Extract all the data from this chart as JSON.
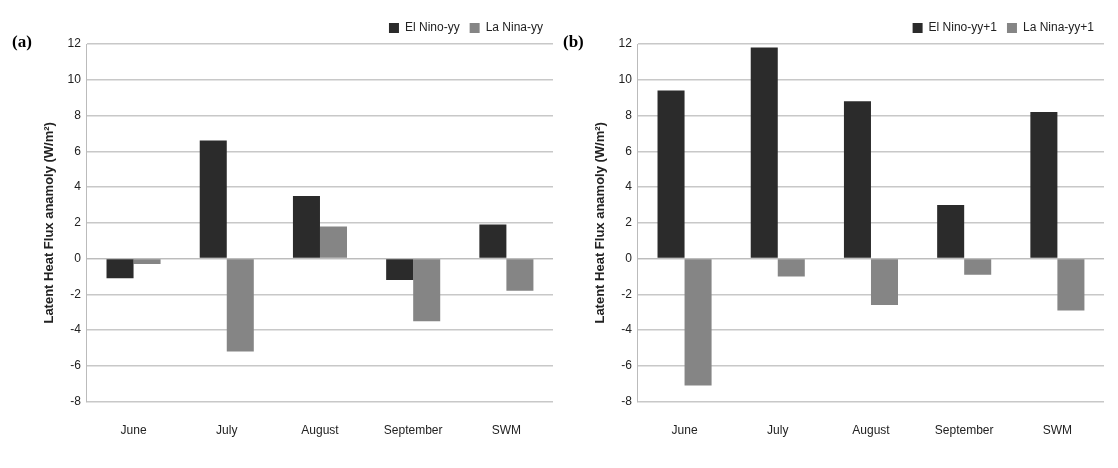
{
  "chart_data": [
    {
      "type": "bar",
      "annotations": [
        "(a)"
      ],
      "ylabel": "Latent Heat Flux anamoly (W/m²)",
      "categories": [
        "June",
        "July",
        "August",
        "September",
        "SWM"
      ],
      "series": [
        {
          "name": "El Nino-yy",
          "color": "#2b2b2b",
          "values": [
            -1.1,
            6.6,
            3.5,
            -1.2,
            1.9
          ]
        },
        {
          "name": "La Nina-yy",
          "color": "#858585",
          "values": [
            -0.3,
            -5.2,
            1.8,
            -3.5,
            -1.8
          ]
        }
      ],
      "ylim": [
        -8,
        12
      ],
      "yticks": [
        -8,
        -6,
        -4,
        -2,
        0,
        2,
        4,
        6,
        8,
        10,
        12
      ],
      "grid": "y",
      "legend": "top right"
    },
    {
      "type": "bar",
      "annotations": [
        "(b)"
      ],
      "ylabel": "Latent Heat Flux anamoly (W/m²)",
      "categories": [
        "June",
        "July",
        "August",
        "September",
        "SWM"
      ],
      "series": [
        {
          "name": "El Nino-yy+1",
          "color": "#2b2b2b",
          "values": [
            9.4,
            11.8,
            8.8,
            3.0,
            8.2
          ]
        },
        {
          "name": "La Nina-yy+1",
          "color": "#858585",
          "values": [
            -7.1,
            -1.0,
            -2.6,
            -0.9,
            -2.9
          ]
        }
      ],
      "ylim": [
        -8,
        12
      ],
      "yticks": [
        -8,
        -6,
        -4,
        -2,
        0,
        2,
        4,
        6,
        8,
        10,
        12
      ],
      "grid": "y",
      "legend": "top right"
    }
  ]
}
